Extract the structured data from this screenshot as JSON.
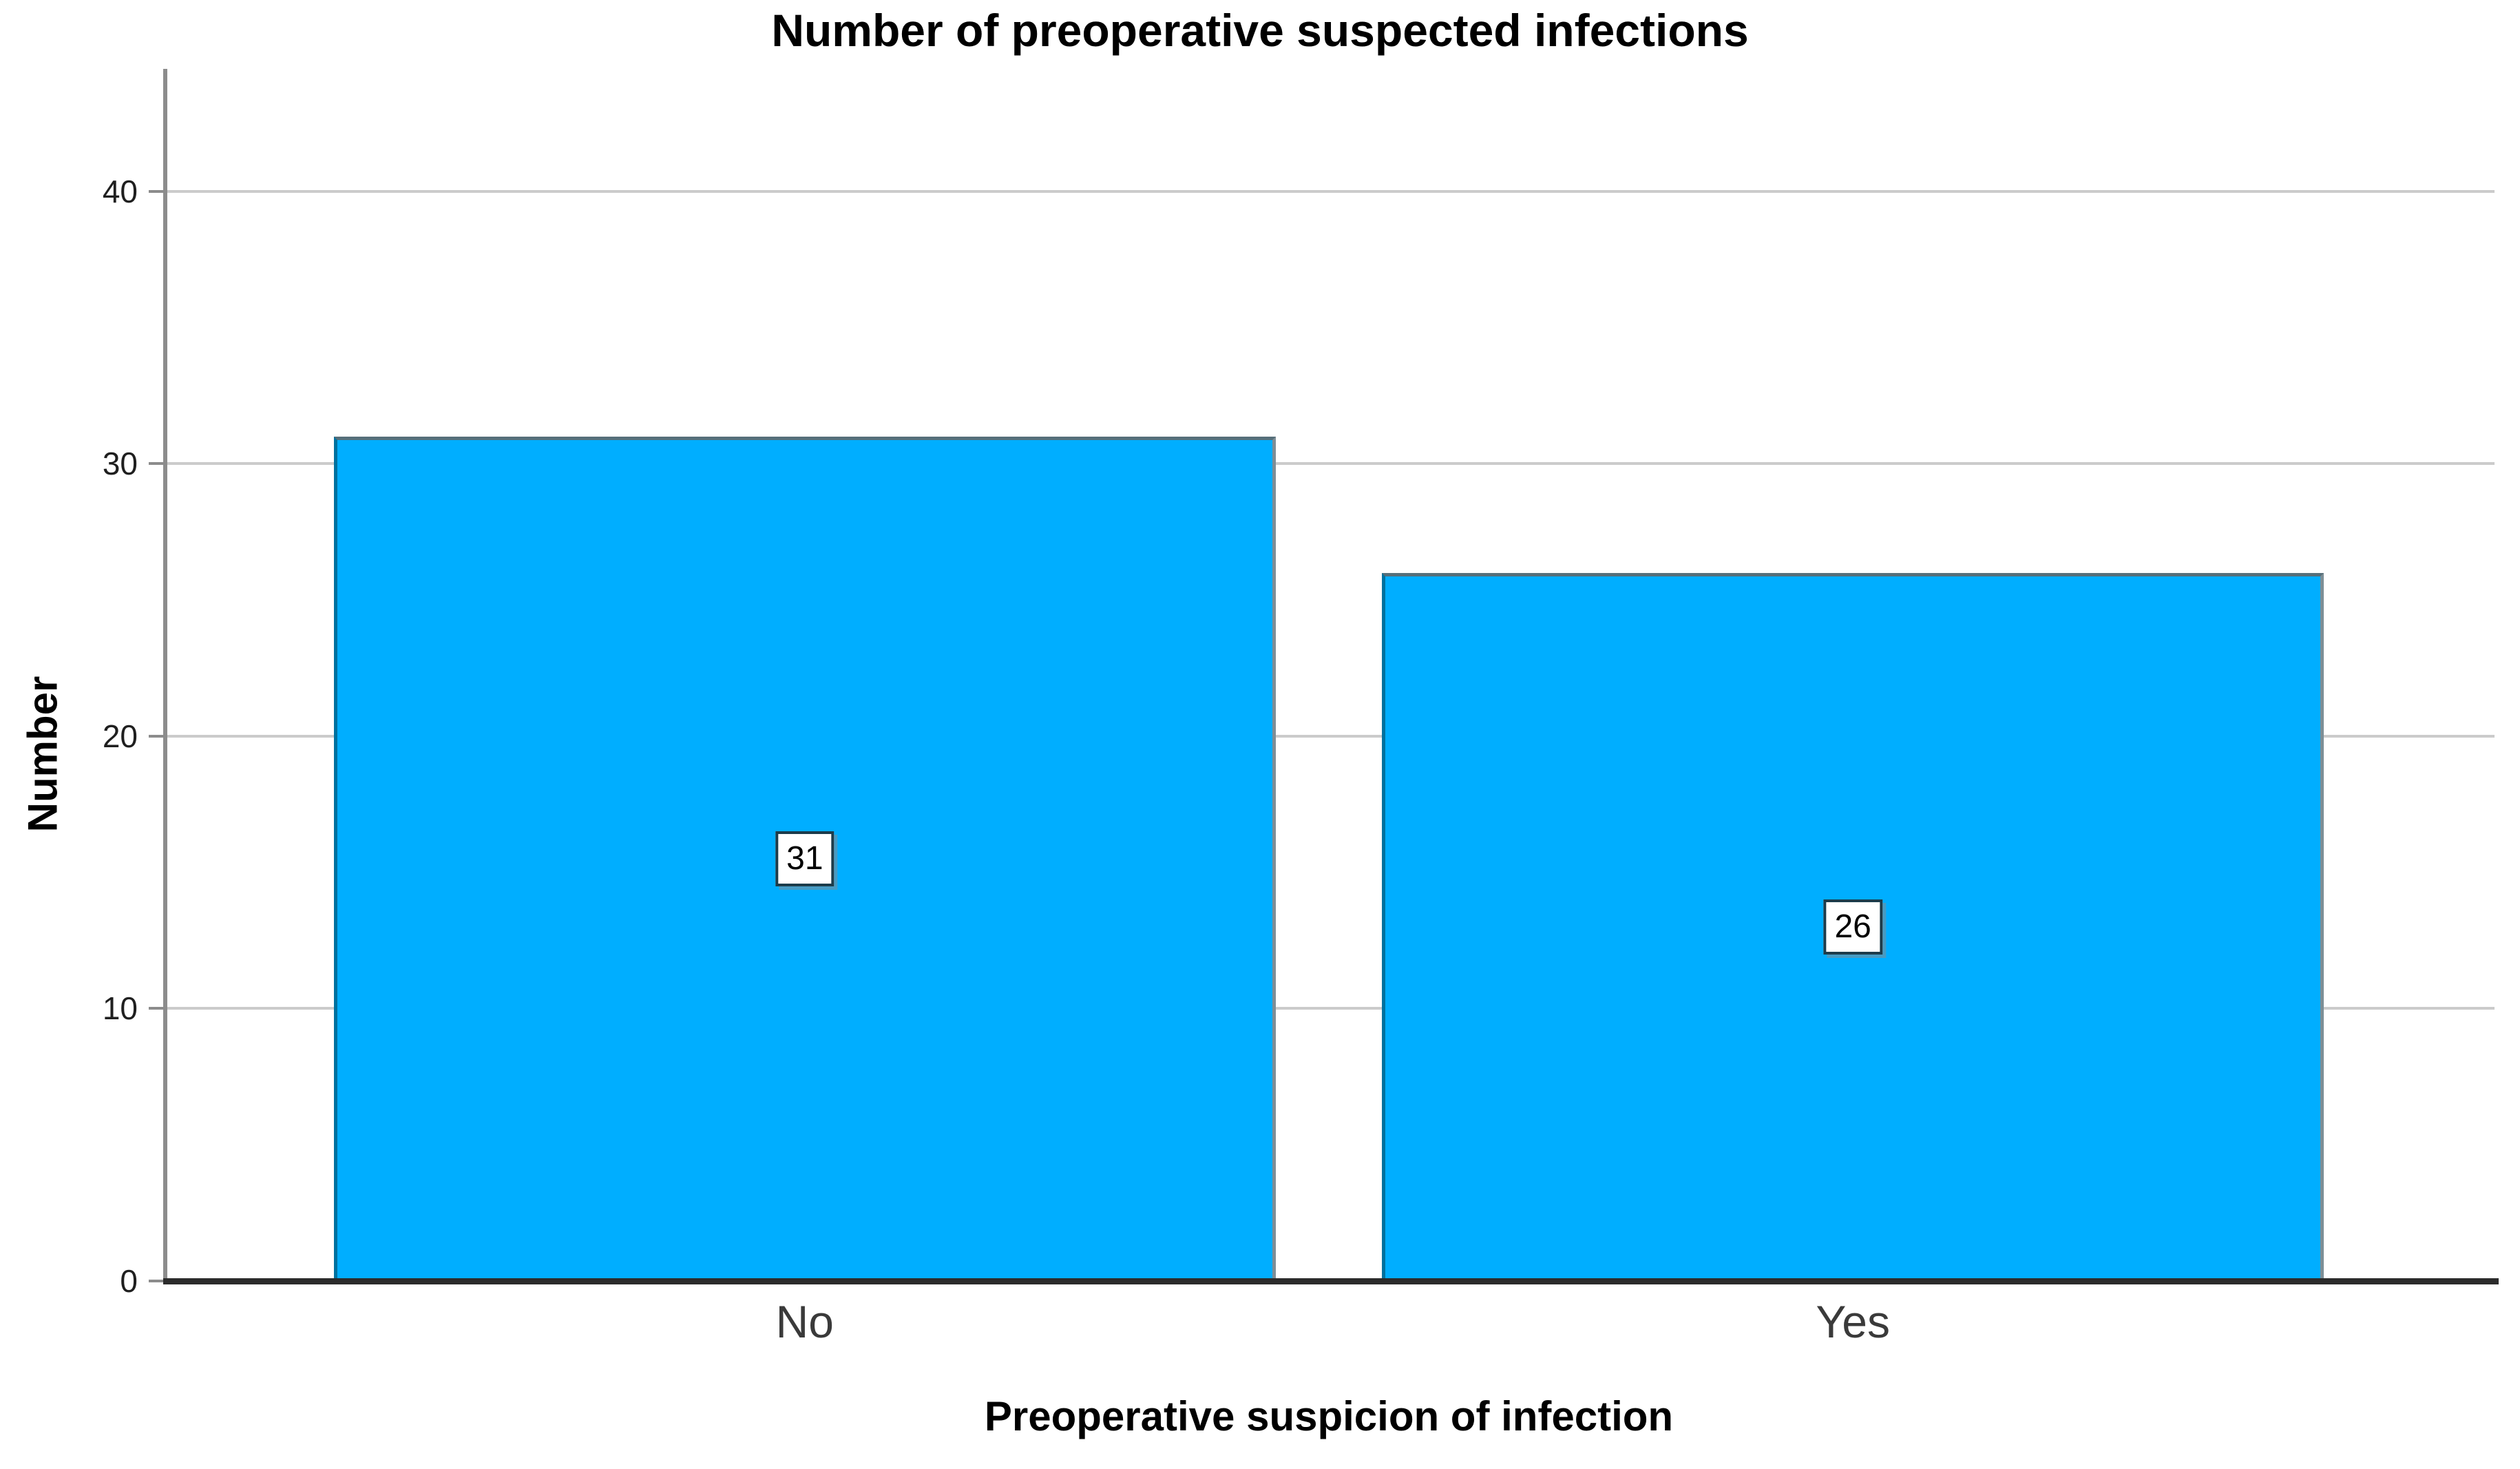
{
  "chart_data": {
    "type": "bar",
    "title": "Number of preoperative suspected infections",
    "xlabel": "Preoperative suspicion of infection",
    "ylabel": "Number",
    "categories": [
      "No",
      "Yes"
    ],
    "values": [
      31,
      26
    ],
    "data_labels": [
      "31",
      "26"
    ],
    "yticks": [
      0,
      10,
      20,
      30,
      40
    ],
    "ylim": [
      0,
      44.5
    ],
    "grid": "horizontal-gridlines-on",
    "legend": "none",
    "bar_color": "#00aeff",
    "gridline_color": "#cbcbcb",
    "y_axis_color": "#8c8c8c",
    "x_axis_color": "#2b2b2b",
    "bar_centers_frac": [
      0.2752,
      0.7248
    ],
    "bar_width_frac": 0.404
  }
}
